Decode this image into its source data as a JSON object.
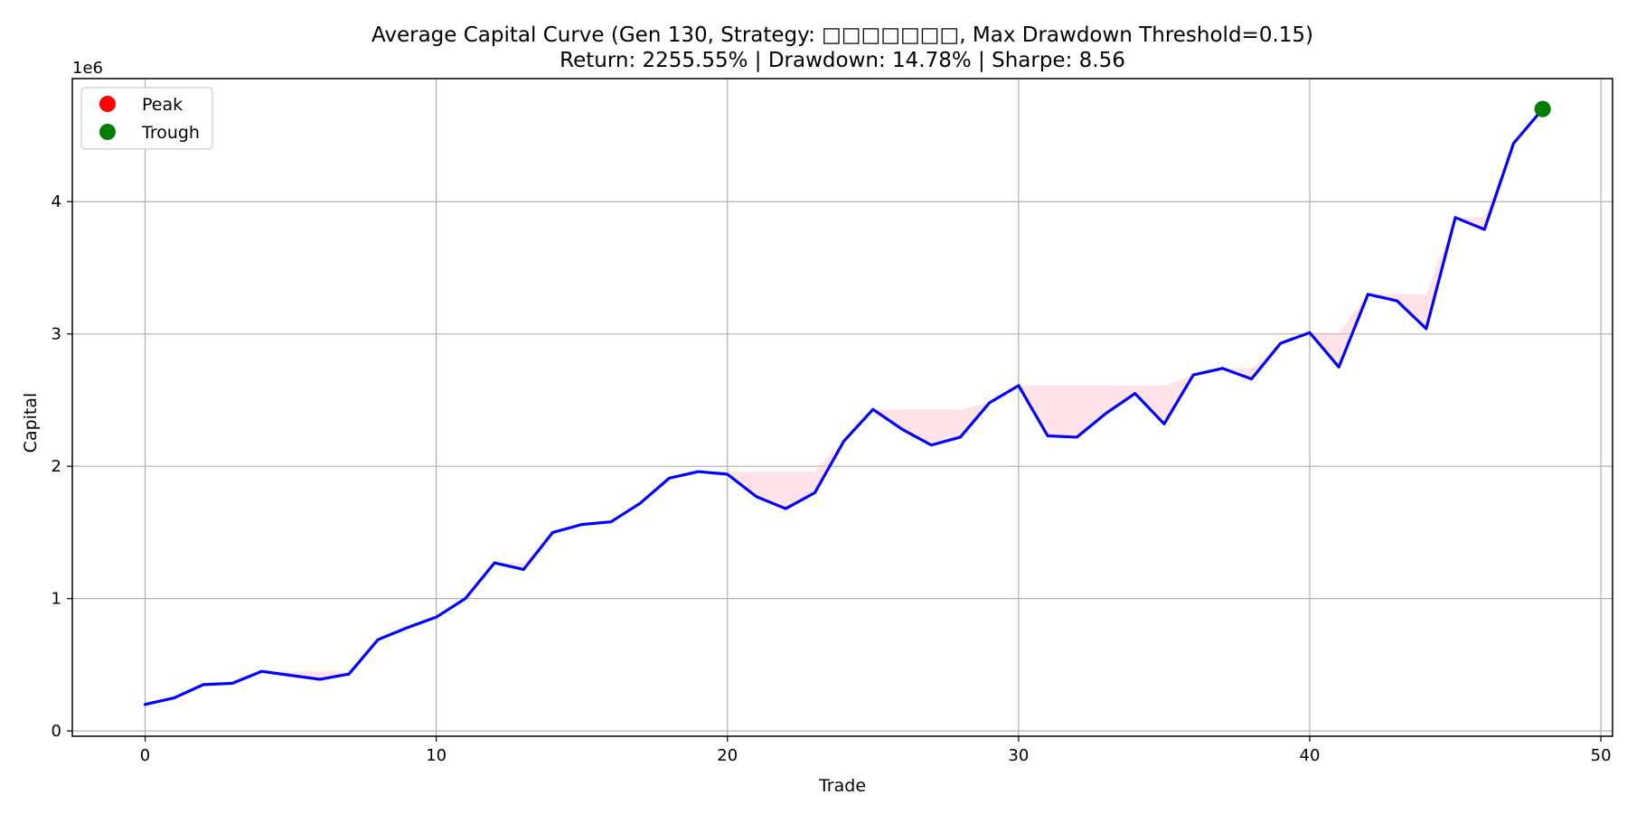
{
  "chart_data": {
    "type": "line",
    "title": "Average Capital Curve (Gen 130, Strategy: □□□□□□□, Max Drawdown Threshold=0.15)",
    "subtitle": "Return: 2255.55% | Drawdown: 14.78% | Sharpe: 8.56",
    "xlabel": "Trade",
    "ylabel": "Capital",
    "y_offset_label": "1e6",
    "xlim": [
      -2.5,
      50.4
    ],
    "ylim": [
      -0.04,
      4.93
    ],
    "xticks": [
      0,
      10,
      20,
      30,
      40,
      50
    ],
    "yticks": [
      0,
      1,
      2,
      3,
      4
    ],
    "grid": true,
    "legend_position": "top-left",
    "line_color": "#0000ff",
    "drawdown_fill_color": "#ffc0cb",
    "series": [
      {
        "x": [
          0,
          1,
          2,
          3,
          4,
          5,
          6,
          7,
          8,
          9,
          10,
          11,
          12,
          13,
          14,
          15,
          16,
          17,
          18,
          19,
          20,
          21,
          22,
          23,
          24,
          25,
          26,
          27,
          28,
          29,
          30,
          31,
          32,
          33,
          34,
          35,
          36,
          37,
          38,
          39,
          40,
          41,
          42,
          43,
          44,
          45,
          46,
          47,
          48
        ],
        "values": [
          0.2,
          0.25,
          0.35,
          0.36,
          0.45,
          0.42,
          0.39,
          0.43,
          0.69,
          0.78,
          0.86,
          1.0,
          1.27,
          1.22,
          1.5,
          1.56,
          1.58,
          1.72,
          1.91,
          1.96,
          1.94,
          1.77,
          1.68,
          1.8,
          2.19,
          2.43,
          2.28,
          2.16,
          2.22,
          2.48,
          2.61,
          2.23,
          2.22,
          2.4,
          2.55,
          2.32,
          2.69,
          2.74,
          2.66,
          2.93,
          3.01,
          2.75,
          3.3,
          3.25,
          3.04,
          3.88,
          3.79,
          4.44,
          4.7
        ]
      }
    ],
    "legend": [
      {
        "label": "Peak",
        "color": "#ff0000"
      },
      {
        "label": "Trough",
        "color": "#008000"
      }
    ],
    "markers": [
      {
        "type": "peak",
        "x": 48,
        "y": 4.7,
        "color": "#ff0000"
      },
      {
        "type": "trough",
        "x": 48,
        "y": 4.7,
        "color": "#008000"
      }
    ]
  }
}
